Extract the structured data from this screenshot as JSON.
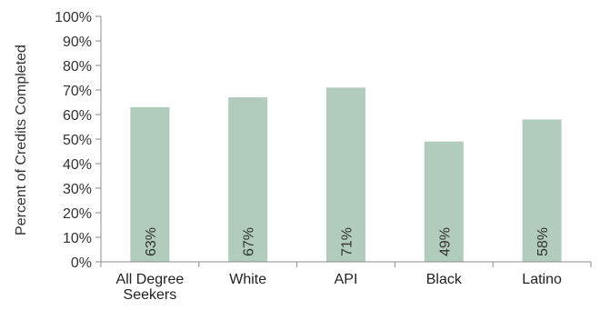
{
  "chart_data": {
    "type": "bar",
    "title": "",
    "xlabel": "",
    "ylabel": "Percent of Credits Completed",
    "categories": [
      [
        "All Degree",
        "Seekers"
      ],
      [
        "White"
      ],
      [
        "API"
      ],
      [
        "Black"
      ],
      [
        "Latino"
      ]
    ],
    "values": [
      63,
      67,
      71,
      49,
      58
    ],
    "data_labels": [
      "63%",
      "67%",
      "71%",
      "49%",
      "58%"
    ],
    "ylim": [
      0,
      100
    ],
    "yticks": [
      0,
      10,
      20,
      30,
      40,
      50,
      60,
      70,
      80,
      90,
      100
    ],
    "ytick_labels": [
      "0%",
      "10%",
      "20%",
      "30%",
      "40%",
      "50%",
      "60%",
      "70%",
      "80%",
      "90%",
      "100%"
    ],
    "grid": false,
    "legend": "none",
    "bar_color": "#b1cbbd",
    "axis_color": "#8c8c8c"
  }
}
